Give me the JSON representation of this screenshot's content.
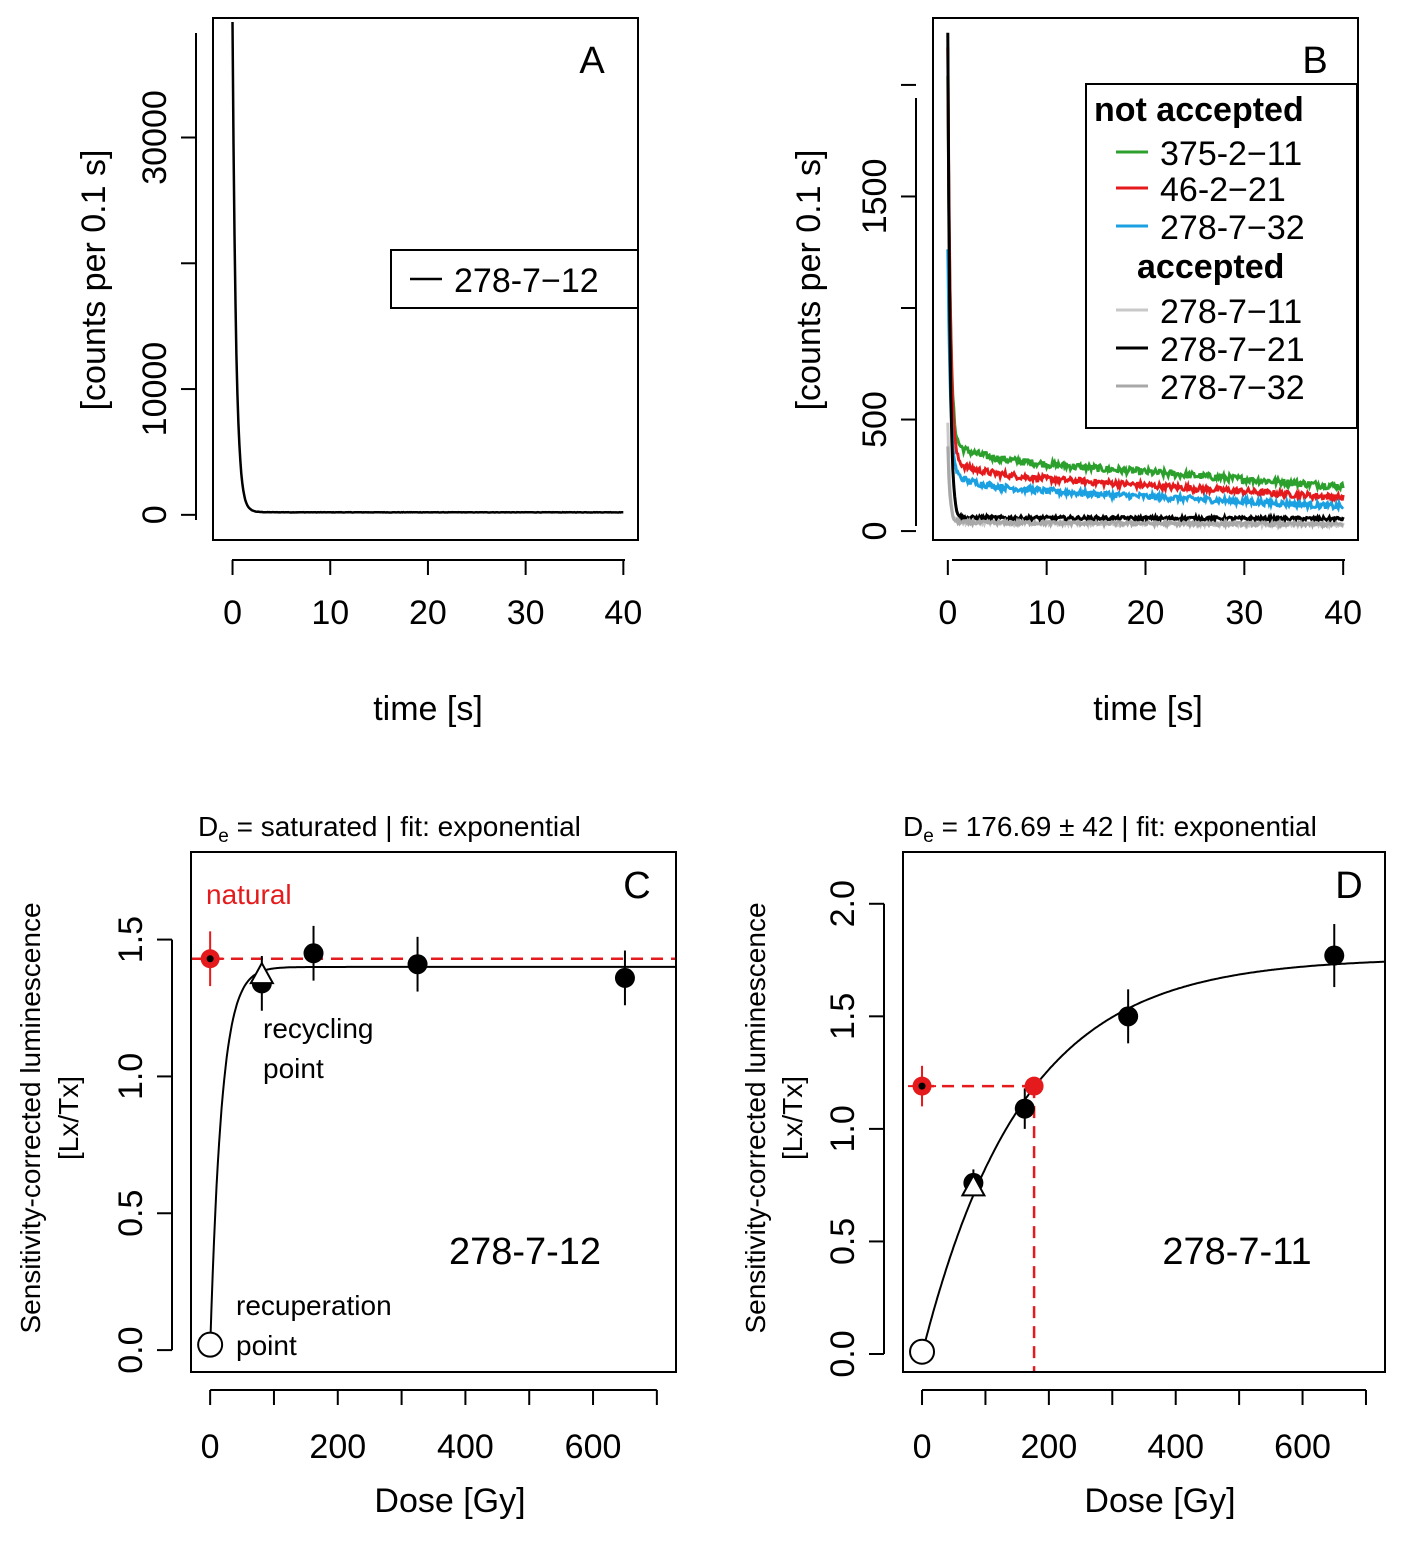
{
  "chart_data": [
    {
      "id": "A",
      "type": "line",
      "panel_label": "A",
      "xlabel": "time [s]",
      "ylabel": "[counts per 0.1 s]",
      "xlim": [
        -2,
        41.5
      ],
      "ylim": [
        -2000,
        39500
      ],
      "x_ticks": [
        0,
        10,
        20,
        30,
        40
      ],
      "y_ticks": [
        0,
        10000,
        20000,
        30000
      ],
      "y_tick_labels": [
        "0",
        "10000",
        "",
        "30000"
      ],
      "legend": {
        "position": "right",
        "entries": [
          {
            "name": "278-7−12",
            "color": "#000000"
          }
        ]
      },
      "series": [
        {
          "name": "278-7−12",
          "color": "#000000",
          "peak": 39000,
          "baseline": 200,
          "decay": 0.35,
          "noise": 30
        }
      ]
    },
    {
      "id": "B",
      "type": "line",
      "panel_label": "B",
      "xlabel": "time [s]",
      "ylabel": "[counts per 0.1 s]",
      "xlim": [
        -1.5,
        41.5
      ],
      "ylim": [
        -40,
        2300
      ],
      "x_ticks": [
        0,
        10,
        20,
        30,
        40
      ],
      "y_ticks": [
        0,
        500,
        1000,
        1500,
        2000
      ],
      "y_tick_labels": [
        "0",
        "500",
        "",
        "1500",
        ""
      ],
      "legend": {
        "position": "top-right",
        "groups": [
          {
            "title": "not accepted",
            "entries": [
              {
                "name": "375-2−11",
                "color": "#2ca02c"
              },
              {
                "name": "46-2−21",
                "color": "#e41a1c"
              },
              {
                "name": "278-7−32",
                "color": "#1ba1e2"
              }
            ]
          },
          {
            "title": "accepted",
            "entries": [
              {
                "name": "278-7−11",
                "color": "#c8c8c8"
              },
              {
                "name": "278-7−21",
                "color": "#000000"
              },
              {
                "name": "278-7−32",
                "color": "#a8a8a8"
              }
            ]
          }
        ]
      },
      "series": [
        {
          "name": "375-2−11",
          "color": "#2ca02c",
          "peak": 2050,
          "plateau": 400,
          "tail_start": 330,
          "tail_end": 200,
          "decay": 0.25,
          "noise": 16
        },
        {
          "name": "46-2−21",
          "color": "#e41a1c",
          "peak": 2180,
          "plateau": 320,
          "tail_start": 260,
          "tail_end": 150,
          "decay": 0.25,
          "noise": 14
        },
        {
          "name": "278-7−32",
          "color": "#1ba1e2",
          "peak": 1270,
          "plateau": 260,
          "tail_start": 200,
          "tail_end": 110,
          "decay": 0.25,
          "noise": 14
        },
        {
          "name": "278-7−11",
          "color": "#c8c8c8",
          "peak": 480,
          "plateau": 45,
          "tail_start": 40,
          "tail_end": 30,
          "decay": 0.2,
          "noise": 9
        },
        {
          "name": "278-7−21",
          "color": "#000000",
          "peak": 2240,
          "plateau": 60,
          "tail_start": 60,
          "tail_end": 55,
          "decay": 0.22,
          "noise": 8
        },
        {
          "name": "278-7−32",
          "color": "#a8a8a8",
          "peak": 380,
          "plateau": 40,
          "tail_start": 38,
          "tail_end": 30,
          "decay": 0.2,
          "noise": 8
        }
      ]
    },
    {
      "id": "C",
      "type": "scatter",
      "panel_label": "C",
      "title": "Dₑ = saturated  | fit:  exponential",
      "title_parts": {
        "main": "D",
        "sub": "e",
        "rest": " = saturated  | fit:  exponential"
      },
      "xlabel": "Dose [Gy]",
      "ylabel": "Sensitivity-corrected luminescence",
      "ylabel2": "[Lx/Tx]",
      "xlim": [
        -30,
        730
      ],
      "ylim": [
        -0.08,
        1.82
      ],
      "x_ticks": [
        0,
        100,
        200,
        300,
        400,
        500,
        600,
        700
      ],
      "x_tick_labels": [
        "0",
        "",
        "200",
        "",
        "400",
        "",
        "600",
        ""
      ],
      "y_ticks": [
        0.0,
        0.5,
        1.0,
        1.5
      ],
      "y_tick_labels": [
        "0.0",
        "0.5",
        "1.0",
        "1.5"
      ],
      "sample_label": "278-7-12",
      "annotations": {
        "natural": "natural",
        "recycling": [
          "recycling",
          "point"
        ],
        "recuperation": [
          "recuperation",
          "point"
        ]
      },
      "fit": {
        "type": "exponential",
        "a": 1.4,
        "d0": 18
      },
      "natural_point": {
        "x": 0,
        "y": 1.43,
        "err": 0.1
      },
      "natural_line": 1.43,
      "points": [
        {
          "x": 81,
          "y": 1.34,
          "err": 0.1
        },
        {
          "x": 162,
          "y": 1.45,
          "err": 0.1
        },
        {
          "x": 325,
          "y": 1.41,
          "err": 0.1
        },
        {
          "x": 650,
          "y": 1.36,
          "err": 0.1
        }
      ],
      "recycling_point": {
        "x": 81,
        "y": 1.37
      },
      "recuperation_point": {
        "x": 0,
        "y": 0.02
      }
    },
    {
      "id": "D",
      "type": "scatter",
      "panel_label": "D",
      "title": "Dₑ = 176.69 ± 42  | fit:  exponential",
      "title_parts": {
        "main": "D",
        "sub": "e",
        "rest": " = 176.69 ± 42  | fit:  exponential"
      },
      "xlabel": "Dose [Gy]",
      "ylabel": "Sensitivity-corrected luminescence",
      "ylabel2": "[Lx/Tx]",
      "xlim": [
        -30,
        730
      ],
      "ylim": [
        -0.08,
        2.23
      ],
      "x_ticks": [
        0,
        100,
        200,
        300,
        400,
        500,
        600,
        700
      ],
      "x_tick_labels": [
        "0",
        "",
        "200",
        "",
        "400",
        "",
        "600",
        ""
      ],
      "y_ticks": [
        0.0,
        0.5,
        1.0,
        1.5,
        2.0
      ],
      "y_tick_labels": [
        "0.0",
        "0.5",
        "1.0",
        "1.5",
        "2.0"
      ],
      "sample_label": "278-7-11",
      "fit": {
        "type": "exponential",
        "a": 1.76,
        "d0": 158
      },
      "natural_point": {
        "x": 0,
        "y": 1.19,
        "err": 0.09
      },
      "de_point": {
        "x": 176.69,
        "y": 1.19
      },
      "points": [
        {
          "x": 81,
          "y": 0.76,
          "err": 0.06
        },
        {
          "x": 162,
          "y": 1.09,
          "err": 0.09
        },
        {
          "x": 325,
          "y": 1.5,
          "err": 0.12
        },
        {
          "x": 650,
          "y": 1.77,
          "err": 0.14
        }
      ],
      "recycling_point": {
        "x": 81,
        "y": 0.74
      },
      "recuperation_point": {
        "x": 0,
        "y": 0.01
      }
    }
  ]
}
